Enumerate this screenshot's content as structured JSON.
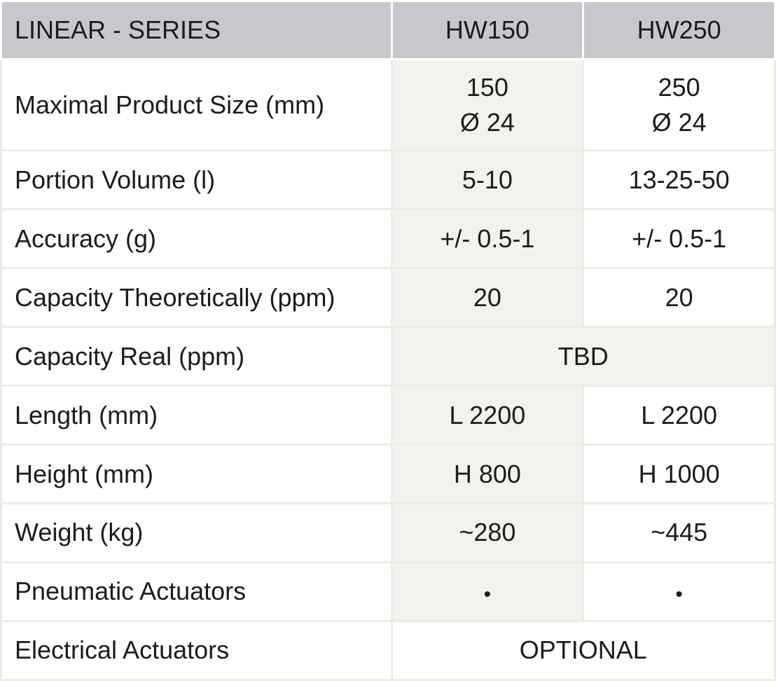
{
  "table": {
    "header": {
      "label": "LINEAR - SERIES",
      "model_a": "HW150",
      "model_b": "HW250"
    },
    "rows": [
      {
        "label": "Maximal Product Size (mm)",
        "a_line1": "150",
        "a_line2": "Ø 24",
        "b_line1": "250",
        "b_line2": "Ø 24"
      },
      {
        "label": "Portion Volume (l)",
        "a": "5-10",
        "b": "13-25-50"
      },
      {
        "label": "Accuracy (g)",
        "a": "+/- 0.5-1",
        "b": "+/- 0.5-1"
      },
      {
        "label": "Capacity Theoretically (ppm)",
        "a": "20",
        "b": "20"
      },
      {
        "label": "Capacity Real (ppm)",
        "merged": "TBD"
      },
      {
        "label": "Length (mm)",
        "a": "L 2200",
        "b": "L 2200"
      },
      {
        "label": "Height (mm)",
        "a": "H 800",
        "b": "H 1000"
      },
      {
        "label": "Weight (kg)",
        "a": "~280",
        "b": "~445"
      },
      {
        "label": "Pneumatic Actuators",
        "a": "•",
        "b": "•"
      },
      {
        "label": "Electrical Actuators",
        "merged": "OPTIONAL"
      }
    ]
  }
}
